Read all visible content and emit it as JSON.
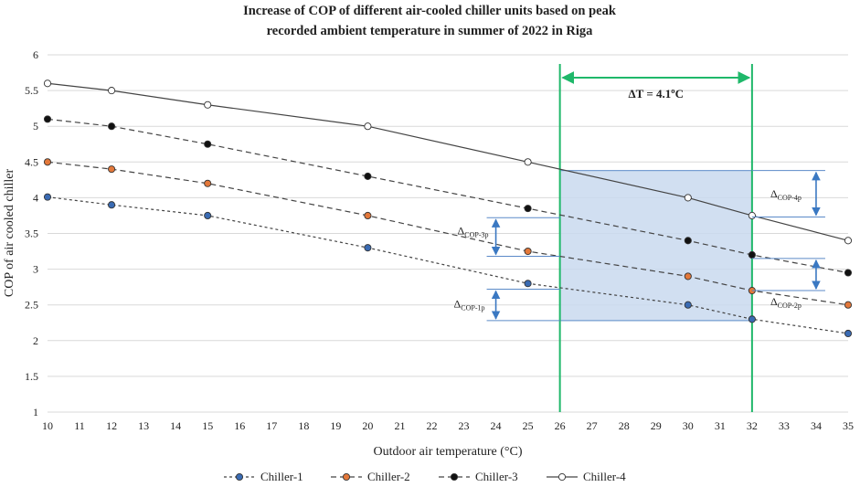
{
  "chart_data": {
    "type": "line",
    "title_lines": [
      "Increase of COP of different air-cooled chiller units based on peak",
      "recorded ambient temperature in summer of 2022 in Riga"
    ],
    "xlabel": "Outdoor air temperature (°C)",
    "ylabel": "COP of air cooled chiller",
    "xlim": [
      10,
      35
    ],
    "ylim": [
      1,
      6
    ],
    "xticks": [
      "10",
      "11",
      "12",
      "13",
      "14",
      "15",
      "16",
      "17",
      "18",
      "19",
      "20",
      "21",
      "22",
      "23",
      "24",
      "25",
      "26",
      "27",
      "28",
      "29",
      "30",
      "31",
      "32",
      "33",
      "34",
      "35"
    ],
    "yticks": [
      "1",
      "1.5",
      "2",
      "2.5",
      "3",
      "3.5",
      "4",
      "4.5",
      "5",
      "5.5",
      "6"
    ],
    "grid": "horizontal",
    "series": [
      {
        "name": "Chiller-1",
        "line_style": "dotted",
        "marker_color": "#3a6bb3",
        "x": [
          10,
          12,
          15,
          20,
          25,
          30,
          32,
          35
        ],
        "y": [
          4.01,
          3.9,
          3.75,
          3.3,
          2.8,
          2.5,
          2.3,
          2.1
        ]
      },
      {
        "name": "Chiller-2",
        "line_style": "dashed",
        "marker_color": "#e3783a",
        "x": [
          10,
          12,
          15,
          20,
          25,
          30,
          32,
          35
        ],
        "y": [
          4.5,
          4.4,
          4.2,
          3.75,
          3.25,
          2.9,
          2.7,
          2.5
        ]
      },
      {
        "name": "Chiller-3",
        "line_style": "dashed",
        "marker_color": "#111111",
        "x": [
          10,
          12,
          15,
          20,
          25,
          30,
          32,
          35
        ],
        "y": [
          5.1,
          5.0,
          4.75,
          4.3,
          3.85,
          3.4,
          3.2,
          2.95
        ]
      },
      {
        "name": "Chiller-4",
        "line_style": "solid",
        "marker_color": "#ffffff",
        "x": [
          10,
          12,
          15,
          20,
          25,
          30,
          32,
          35
        ],
        "y": [
          5.6,
          5.5,
          5.3,
          5.0,
          4.5,
          4.0,
          3.75,
          3.4
        ]
      }
    ],
    "vertical_lines": [
      26,
      32
    ],
    "shaded_region": {
      "x": [
        26,
        32
      ],
      "y": [
        2.28,
        4.38
      ]
    },
    "delta_T_label": "ΔT = 4.1ºC",
    "annotations": [
      {
        "symbol": "Δ",
        "sub": "COP-1p",
        "x": 24,
        "y_from": 2.28,
        "y_to": 2.72
      },
      {
        "symbol": "Δ",
        "sub": "COP-3p",
        "x": 24,
        "y_from": 3.18,
        "y_to": 3.72
      },
      {
        "symbol": "Δ",
        "sub": "COP-2p",
        "x": 34,
        "y_from": 2.7,
        "y_to": 3.15
      },
      {
        "symbol": "Δ",
        "sub": "COP-4p",
        "x": 34,
        "y_from": 3.73,
        "y_to": 4.38
      }
    ]
  },
  "colors": {
    "grid": "#d9d9d9",
    "vline": "#1fb86a",
    "shade": "#c9d9ef",
    "shade_edge": "#5b8ac8",
    "arrow": "#3a78c2",
    "line": "#444444"
  }
}
